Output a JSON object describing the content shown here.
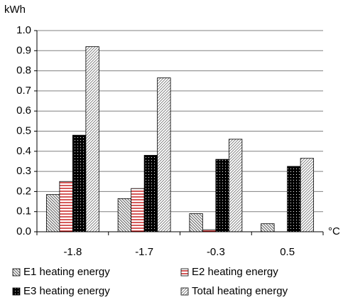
{
  "chart_data": {
    "type": "bar",
    "y_unit": "kWh",
    "x_unit": "°C",
    "categories": [
      "-1.8",
      "-1.7",
      "-0.3",
      "0.5"
    ],
    "series": [
      {
        "name": "E1 heating energy",
        "color": "#707070",
        "pattern": "diagonal-back",
        "values": [
          0.185,
          0.165,
          0.09,
          0.04
        ]
      },
      {
        "name": "E2 heating energy",
        "color": "#c00000",
        "pattern": "horizontal",
        "values": [
          0.25,
          0.215,
          0.01,
          0
        ]
      },
      {
        "name": "E3 heating energy",
        "color": "#000000",
        "pattern": "dots",
        "values": [
          0.48,
          0.38,
          0.36,
          0.325
        ]
      },
      {
        "name": "Total heating energy",
        "color": "#707070",
        "pattern": "diagonal-fine",
        "values": [
          0.92,
          0.765,
          0.46,
          0.365
        ]
      }
    ],
    "ylim": [
      0,
      1
    ],
    "yticks": [
      {
        "value": 0,
        "label": "0.0"
      },
      0.1,
      0.2,
      0.3,
      0.4,
      0.5,
      0.6,
      0.7,
      0.8,
      0.9,
      {
        "value": 1,
        "label": "1.0"
      }
    ],
    "grid": true,
    "legend": "bottom"
  }
}
